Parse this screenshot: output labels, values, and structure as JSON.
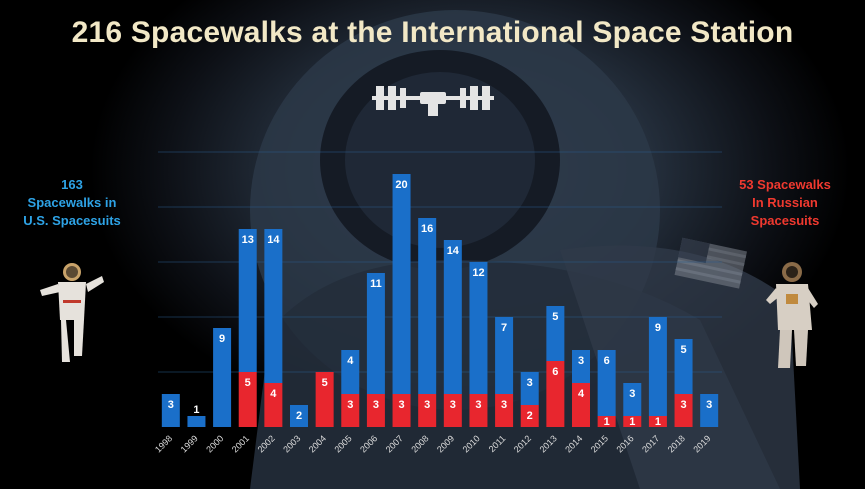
{
  "title": "216 Spacewalks at the International Space Station",
  "side_labels": {
    "us": [
      "163",
      "Spacewalks in",
      "U.S. Spacesuits"
    ],
    "russian": [
      "53 Spacewalks",
      "In Russian",
      "Spacesuits"
    ]
  },
  "colors": {
    "us": "#1a6fc9",
    "russian": "#e8262e",
    "title": "#f2e8c6",
    "us_text": "#2ea3e6",
    "ru_text": "#f0392f"
  },
  "icons": [
    "iss-icon",
    "us-astronaut-icon",
    "russian-cosmonaut-icon",
    "us-flag-icon"
  ],
  "chart_data": {
    "type": "bar",
    "stacked": true,
    "title": "216 Spacewalks at the International Space Station",
    "categories": [
      "1998",
      "1999",
      "2000",
      "2001",
      "2002",
      "2003",
      "2004",
      "2005",
      "2006",
      "2007",
      "2008",
      "2009",
      "2010",
      "2011",
      "2012",
      "2013",
      "2014",
      "2015",
      "2016",
      "2017",
      "2018",
      "2019"
    ],
    "series": [
      {
        "name": "Spacewalks in U.S. Spacesuits",
        "color": "#1a6fc9",
        "values": [
          3,
          1,
          9,
          13,
          14,
          2,
          0,
          4,
          11,
          20,
          16,
          14,
          12,
          7,
          3,
          5,
          3,
          6,
          3,
          9,
          5,
          3
        ]
      },
      {
        "name": "Spacewalks In Russian Spacesuits",
        "color": "#e8262e",
        "values": [
          0,
          0,
          0,
          5,
          4,
          0,
          5,
          3,
          3,
          3,
          3,
          3,
          3,
          3,
          2,
          6,
          4,
          1,
          1,
          1,
          3,
          0
        ]
      }
    ],
    "ylim": [
      0,
      25
    ],
    "grid": true,
    "xlabel": "",
    "ylabel": ""
  }
}
